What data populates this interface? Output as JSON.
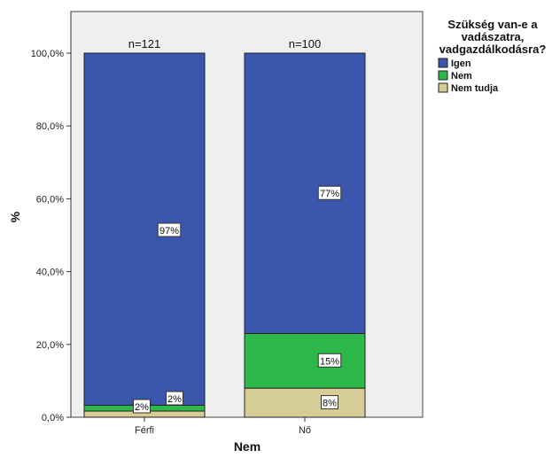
{
  "chart_data": {
    "type": "bar",
    "stacked": true,
    "title": "",
    "xlabel": "Nem",
    "ylabel": "%",
    "ylim": [
      0,
      100
    ],
    "yticks": [
      "0,0%",
      "20,0%",
      "40,0%",
      "60,0%",
      "80,0%",
      "100,0%"
    ],
    "categories": [
      "Férfi",
      "Nő"
    ],
    "category_counts": [
      "n=121",
      "n=100"
    ],
    "series": [
      {
        "name": "Nem tudja",
        "color": "#d5cc96",
        "values": [
          1.7,
          8
        ],
        "labels": [
          "2%",
          "8%"
        ]
      },
      {
        "name": "Nem",
        "color": "#2db94a",
        "values": [
          1.6,
          15
        ],
        "labels": [
          "2%",
          "15%"
        ]
      },
      {
        "name": "Igen",
        "color": "#3b57ad",
        "values": [
          96.7,
          77
        ],
        "labels": [
          "97%",
          "77%"
        ]
      }
    ],
    "legend": {
      "title_lines": [
        "Szükség van-e a",
        "vadászatra,",
        "vadgazdálkodásra?"
      ],
      "placement": "top-right",
      "order": [
        "Igen",
        "Nem",
        "Nem tudja"
      ]
    },
    "grid": false,
    "plot_background": "#efefef"
  }
}
